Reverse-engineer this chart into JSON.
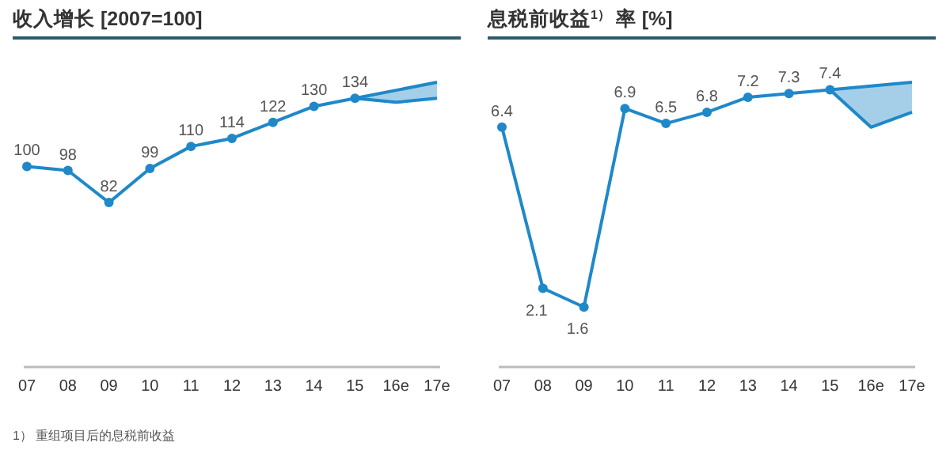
{
  "chart_data": [
    {
      "type": "line",
      "title": "收入增长 [2007=100]",
      "categories": [
        "07",
        "08",
        "09",
        "10",
        "11",
        "12",
        "13",
        "14",
        "15",
        "16e",
        "17e"
      ],
      "series": [
        {
          "color": "#1f88c9",
          "values": [
            100,
            98,
            82,
            99,
            110,
            114,
            122,
            130,
            134,
            null,
            null
          ],
          "lower": [
            null,
            null,
            null,
            null,
            null,
            null,
            null,
            null,
            134,
            132,
            134
          ],
          "upper": [
            null,
            null,
            null,
            null,
            null,
            null,
            null,
            null,
            134,
            138,
            142
          ]
        }
      ],
      "data_labels": true,
      "marker": "circle",
      "annotations": [
        "1） 重组项目后的息税前收益"
      ]
    },
    {
      "type": "line",
      "title": "息税前收益$^{1）}$ 率 [%]",
      "categories": [
        "07",
        "08",
        "09",
        "10",
        "11",
        "12",
        "13",
        "14",
        "15",
        "16e",
        "17e"
      ],
      "series": [
        {
          "color": "#1f88c9",
          "values": [
            6.4,
            2.1,
            1.6,
            6.9,
            6.5,
            6.8,
            7.2,
            7.3,
            7.4,
            null,
            null
          ],
          "lower": [
            null,
            null,
            null,
            null,
            null,
            null,
            null,
            null,
            7.4,
            6.4,
            6.8
          ],
          "upper": [
            null,
            null,
            null,
            null,
            null,
            null,
            null,
            null,
            7.4,
            7.5,
            7.6
          ]
        }
      ],
      "data_labels": true,
      "marker": "circle"
    }
  ]
}
